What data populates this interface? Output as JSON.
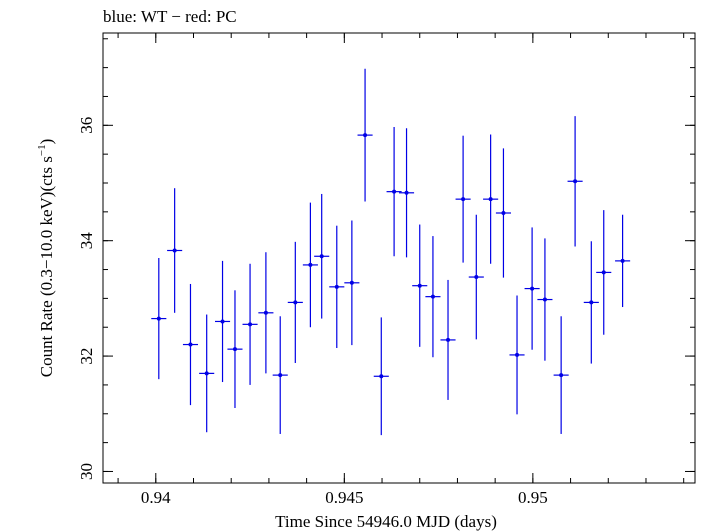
{
  "chart_data": {
    "type": "scatter",
    "title": "blue: WT − red: PC",
    "xlabel": "Time Since 54946.0 MJD (days)",
    "ylabel_main": "Count Rate (0.3−10.0 keV)(cts s",
    "ylabel_sup": "−1",
    "ylabel_close": ")",
    "xlim": [
      0.9386,
      0.9543
    ],
    "ylim": [
      29.8,
      37.6
    ],
    "grid": false,
    "x_ticks": [
      {
        "value": 0.94,
        "label": "0.94"
      },
      {
        "value": 0.945,
        "label": "0.945"
      },
      {
        "value": 0.95,
        "label": "0.95"
      }
    ],
    "y_ticks": [
      {
        "value": 30,
        "label": "30"
      },
      {
        "value": 32,
        "label": "32"
      },
      {
        "value": 34,
        "label": "34"
      },
      {
        "value": 36,
        "label": "36"
      }
    ],
    "x_minor_step": 0.001,
    "y_minor_step": 0.5,
    "series": [
      {
        "color": "#0000e6",
        "x_halfwidth": 0.0002,
        "points": [
          {
            "x": 0.94008,
            "y": 32.65,
            "err": 1.05
          },
          {
            "x": 0.9405,
            "y": 33.83,
            "err": 1.08
          },
          {
            "x": 0.94092,
            "y": 32.2,
            "err": 1.05
          },
          {
            "x": 0.94135,
            "y": 31.7,
            "err": 1.02
          },
          {
            "x": 0.94177,
            "y": 32.6,
            "err": 1.05
          },
          {
            "x": 0.9421,
            "y": 32.12,
            "err": 1.02
          },
          {
            "x": 0.9425,
            "y": 32.55,
            "err": 1.05
          },
          {
            "x": 0.94292,
            "y": 32.75,
            "err": 1.05
          },
          {
            "x": 0.9433,
            "y": 31.67,
            "err": 1.02
          },
          {
            "x": 0.9437,
            "y": 32.93,
            "err": 1.05
          },
          {
            "x": 0.9441,
            "y": 33.58,
            "err": 1.08
          },
          {
            "x": 0.9444,
            "y": 33.73,
            "err": 1.08
          },
          {
            "x": 0.9448,
            "y": 33.2,
            "err": 1.06
          },
          {
            "x": 0.9452,
            "y": 33.27,
            "err": 1.08
          },
          {
            "x": 0.94555,
            "y": 35.83,
            "err": 1.15
          },
          {
            "x": 0.94598,
            "y": 31.65,
            "err": 1.02
          },
          {
            "x": 0.94632,
            "y": 34.85,
            "err": 1.12
          },
          {
            "x": 0.94665,
            "y": 34.83,
            "err": 1.12
          },
          {
            "x": 0.947,
            "y": 33.22,
            "err": 1.06
          },
          {
            "x": 0.94735,
            "y": 33.03,
            "err": 1.05
          },
          {
            "x": 0.94775,
            "y": 32.28,
            "err": 1.04
          },
          {
            "x": 0.94815,
            "y": 34.72,
            "err": 1.1
          },
          {
            "x": 0.9485,
            "y": 33.37,
            "err": 1.08
          },
          {
            "x": 0.94888,
            "y": 34.72,
            "err": 1.12
          },
          {
            "x": 0.94922,
            "y": 34.48,
            "err": 1.12
          },
          {
            "x": 0.94958,
            "y": 32.02,
            "err": 1.03
          },
          {
            "x": 0.94998,
            "y": 33.17,
            "err": 1.06
          },
          {
            "x": 0.95032,
            "y": 32.98,
            "err": 1.06
          },
          {
            "x": 0.95075,
            "y": 31.67,
            "err": 1.02
          },
          {
            "x": 0.95112,
            "y": 35.03,
            "err": 1.13
          },
          {
            "x": 0.95155,
            "y": 32.93,
            "err": 1.06
          },
          {
            "x": 0.95188,
            "y": 33.45,
            "err": 1.08
          },
          {
            "x": 0.95238,
            "y": 33.65,
            "err": 0.8
          }
        ]
      }
    ]
  }
}
